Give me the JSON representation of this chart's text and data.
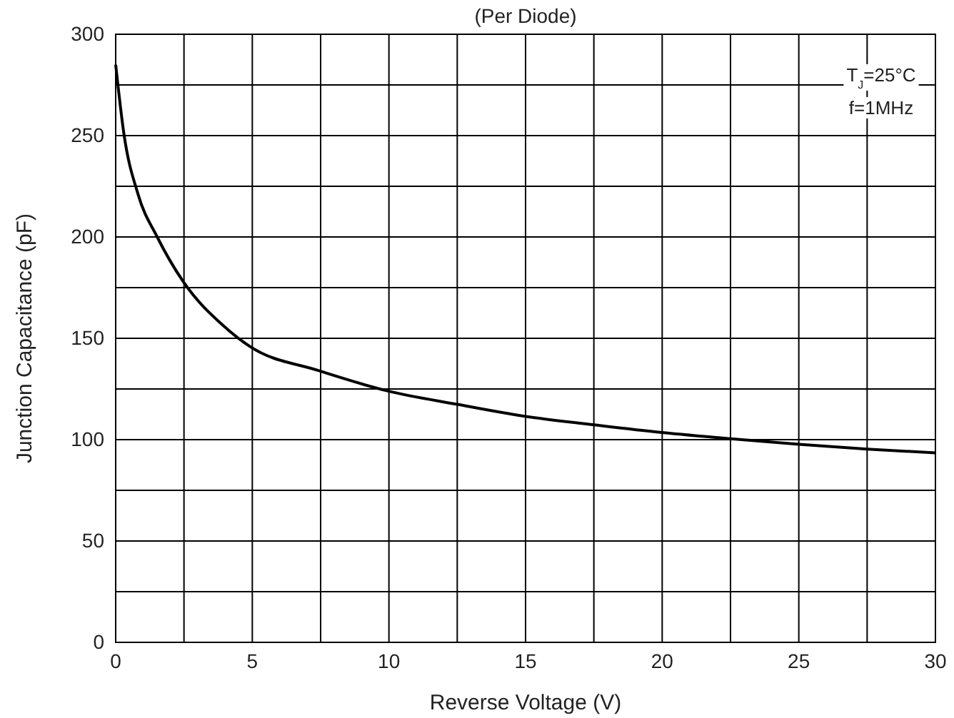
{
  "chart_data": {
    "type": "line",
    "title": "(Per Diode)",
    "xlabel": "Reverse Voltage (V)",
    "ylabel": "Junction Capacitance (pF)",
    "annotations": [
      "T$_{J}$=25°C",
      "f=1MHz"
    ],
    "series": [
      {
        "color": "#000000",
        "x": [
          0,
          0.3,
          0.82,
          1.52,
          2.47,
          3.96,
          4.91,
          7.44,
          9.97,
          12.5,
          14.93,
          17.46,
          20,
          22.43,
          25,
          27.5,
          30
        ],
        "values": [
          285,
          251,
          221,
          200,
          178,
          156,
          146,
          134,
          124,
          117.4,
          111.6,
          107.4,
          103.5,
          100.5,
          97.7,
          95.3,
          93.5
        ]
      }
    ],
    "xlim": [
      0,
      30
    ],
    "ylim": [
      0,
      300
    ],
    "xticks": [
      0,
      {
        "value": 2.5,
        "label": null
      },
      5,
      {
        "value": 7.5,
        "label": null
      },
      10,
      {
        "value": 12.5,
        "label": null
      },
      15,
      {
        "value": 17.5,
        "label": null
      },
      20,
      {
        "value": 22.5,
        "label": null
      },
      25,
      {
        "value": 27.5,
        "label": null
      },
      30
    ],
    "yticks": [
      0,
      {
        "value": 25,
        "label": null
      },
      50,
      {
        "value": 75,
        "label": null
      },
      100,
      {
        "value": 125,
        "label": null
      },
      150,
      {
        "value": 175,
        "label": null
      },
      200,
      {
        "value": 225,
        "label": null
      },
      250,
      {
        "value": 275,
        "label": null
      },
      300
    ],
    "grid": true,
    "marker": "none",
    "line_style": "solid"
  }
}
